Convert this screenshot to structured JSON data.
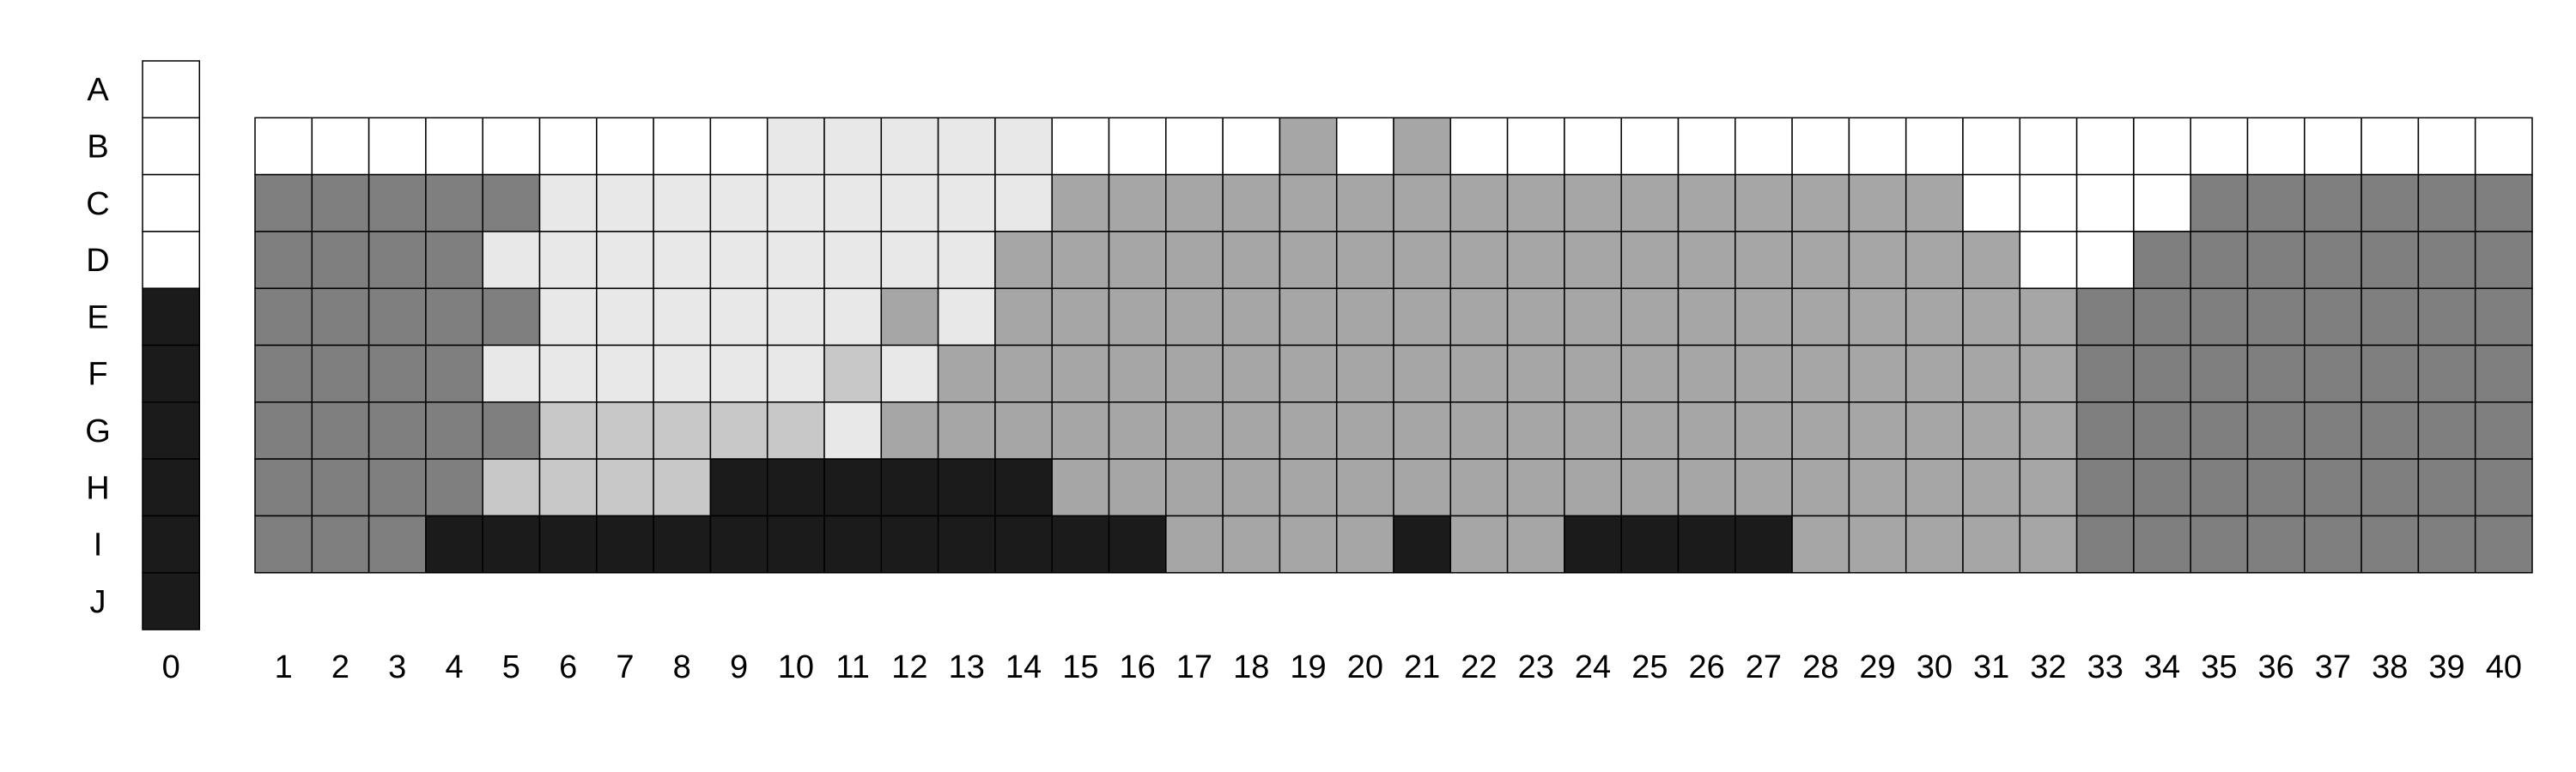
{
  "chart_data": {
    "type": "heatmap",
    "title": "",
    "xlabel": "",
    "ylabel": "",
    "row_labels": [
      "A",
      "B",
      "C",
      "D",
      "E",
      "F",
      "G",
      "H",
      "I",
      "J"
    ],
    "column_labels": [
      "0",
      "1",
      "2",
      "3",
      "4",
      "5",
      "6",
      "7",
      "8",
      "9",
      "10",
      "11",
      "12",
      "13",
      "14",
      "15",
      "16",
      "17",
      "18",
      "19",
      "20",
      "21",
      "22",
      "23",
      "24",
      "25",
      "26",
      "27",
      "28",
      "29",
      "30",
      "31",
      "32",
      "33",
      "34",
      "35",
      "36",
      "37",
      "38",
      "39",
      "40"
    ],
    "reference_column": {
      "label": "0",
      "values": {
        "A": "w",
        "B": "w",
        "C": "w",
        "D": "w",
        "E": "k",
        "F": "k",
        "G": "k",
        "H": "k",
        "I": "k",
        "J": "k"
      }
    },
    "plate_rows": [
      "B",
      "C",
      "D",
      "E",
      "F",
      "G",
      "H",
      "I"
    ],
    "palette": {
      "w": "#ffffff",
      "l": "#e8e8e8",
      "s": "#c8c8c8",
      "m": "#a6a6a6",
      "d": "#7f7f7f",
      "k": "#1b1b1b"
    },
    "plate_values": {
      "B": [
        "w",
        "w",
        "w",
        "w",
        "w",
        "w",
        "w",
        "w",
        "w",
        "l",
        "l",
        "l",
        "l",
        "l",
        "w",
        "w",
        "w",
        "w",
        "m",
        "w",
        "m",
        "w",
        "w",
        "w",
        "w",
        "w",
        "w",
        "w",
        "w",
        "w",
        "w",
        "w",
        "w",
        "w",
        "w",
        "w",
        "w",
        "w",
        "w",
        "w"
      ],
      "C": [
        "d",
        "d",
        "d",
        "d",
        "d",
        "l",
        "l",
        "l",
        "l",
        "l",
        "l",
        "l",
        "l",
        "l",
        "m",
        "m",
        "m",
        "m",
        "m",
        "m",
        "m",
        "m",
        "m",
        "m",
        "m",
        "m",
        "m",
        "m",
        "m",
        "m",
        "w",
        "w",
        "w",
        "w",
        "d",
        "d",
        "d",
        "d",
        "d",
        "d"
      ],
      "D": [
        "d",
        "d",
        "d",
        "d",
        "l",
        "l",
        "l",
        "l",
        "l",
        "l",
        "l",
        "l",
        "l",
        "m",
        "m",
        "m",
        "m",
        "m",
        "m",
        "m",
        "m",
        "m",
        "m",
        "m",
        "m",
        "m",
        "m",
        "m",
        "m",
        "m",
        "m",
        "w",
        "w",
        "d",
        "d",
        "d",
        "d",
        "d",
        "d",
        "d"
      ],
      "E": [
        "d",
        "d",
        "d",
        "d",
        "d",
        "l",
        "l",
        "l",
        "l",
        "l",
        "l",
        "m",
        "l",
        "m",
        "m",
        "m",
        "m",
        "m",
        "m",
        "m",
        "m",
        "m",
        "m",
        "m",
        "m",
        "m",
        "m",
        "m",
        "m",
        "m",
        "m",
        "m",
        "d",
        "d",
        "d",
        "d",
        "d",
        "d",
        "d",
        "d"
      ],
      "F": [
        "d",
        "d",
        "d",
        "d",
        "l",
        "l",
        "l",
        "l",
        "l",
        "l",
        "s",
        "l",
        "m",
        "m",
        "m",
        "m",
        "m",
        "m",
        "m",
        "m",
        "m",
        "m",
        "m",
        "m",
        "m",
        "m",
        "m",
        "m",
        "m",
        "m",
        "m",
        "m",
        "d",
        "d",
        "d",
        "d",
        "d",
        "d",
        "d",
        "d"
      ],
      "G": [
        "d",
        "d",
        "d",
        "d",
        "d",
        "s",
        "s",
        "s",
        "s",
        "s",
        "l",
        "m",
        "m",
        "m",
        "m",
        "m",
        "m",
        "m",
        "m",
        "m",
        "m",
        "m",
        "m",
        "m",
        "m",
        "m",
        "m",
        "m",
        "m",
        "m",
        "m",
        "m",
        "d",
        "d",
        "d",
        "d",
        "d",
        "d",
        "d",
        "d"
      ],
      "H": [
        "d",
        "d",
        "d",
        "d",
        "s",
        "s",
        "s",
        "s",
        "k",
        "k",
        "k",
        "k",
        "k",
        "k",
        "m",
        "m",
        "m",
        "m",
        "m",
        "m",
        "m",
        "m",
        "m",
        "m",
        "m",
        "m",
        "m",
        "m",
        "m",
        "m",
        "m",
        "m",
        "d",
        "d",
        "d",
        "d",
        "d",
        "d",
        "d",
        "d"
      ],
      "I": [
        "d",
        "d",
        "d",
        "k",
        "k",
        "k",
        "k",
        "k",
        "k",
        "k",
        "k",
        "k",
        "k",
        "k",
        "k",
        "k",
        "m",
        "m",
        "m",
        "m",
        "k",
        "m",
        "m",
        "k",
        "k",
        "k",
        "k",
        "m",
        "m",
        "m",
        "m",
        "m",
        "d",
        "d",
        "d",
        "d",
        "d",
        "d",
        "d",
        "d"
      ]
    }
  }
}
